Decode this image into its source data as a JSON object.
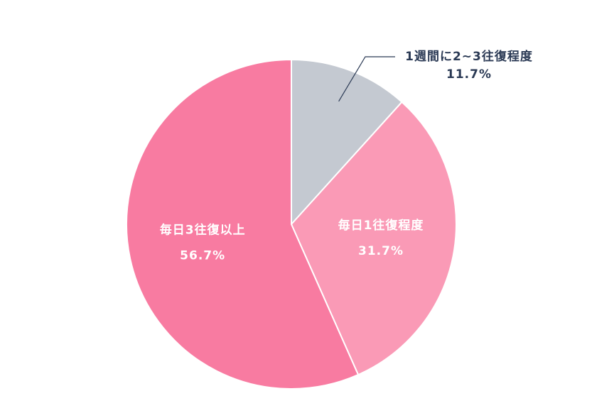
{
  "chart_data": {
    "type": "pie",
    "categories": [
      "1週間に2~3往復程度",
      "毎日1往復程度",
      "毎日3往復以上"
    ],
    "values": [
      11.7,
      31.7,
      56.7
    ],
    "value_labels": [
      "11.7%",
      "31.7%",
      "56.7%"
    ],
    "colors": [
      "#c4c9d1",
      "#fa9ab6",
      "#f87ba1"
    ]
  }
}
